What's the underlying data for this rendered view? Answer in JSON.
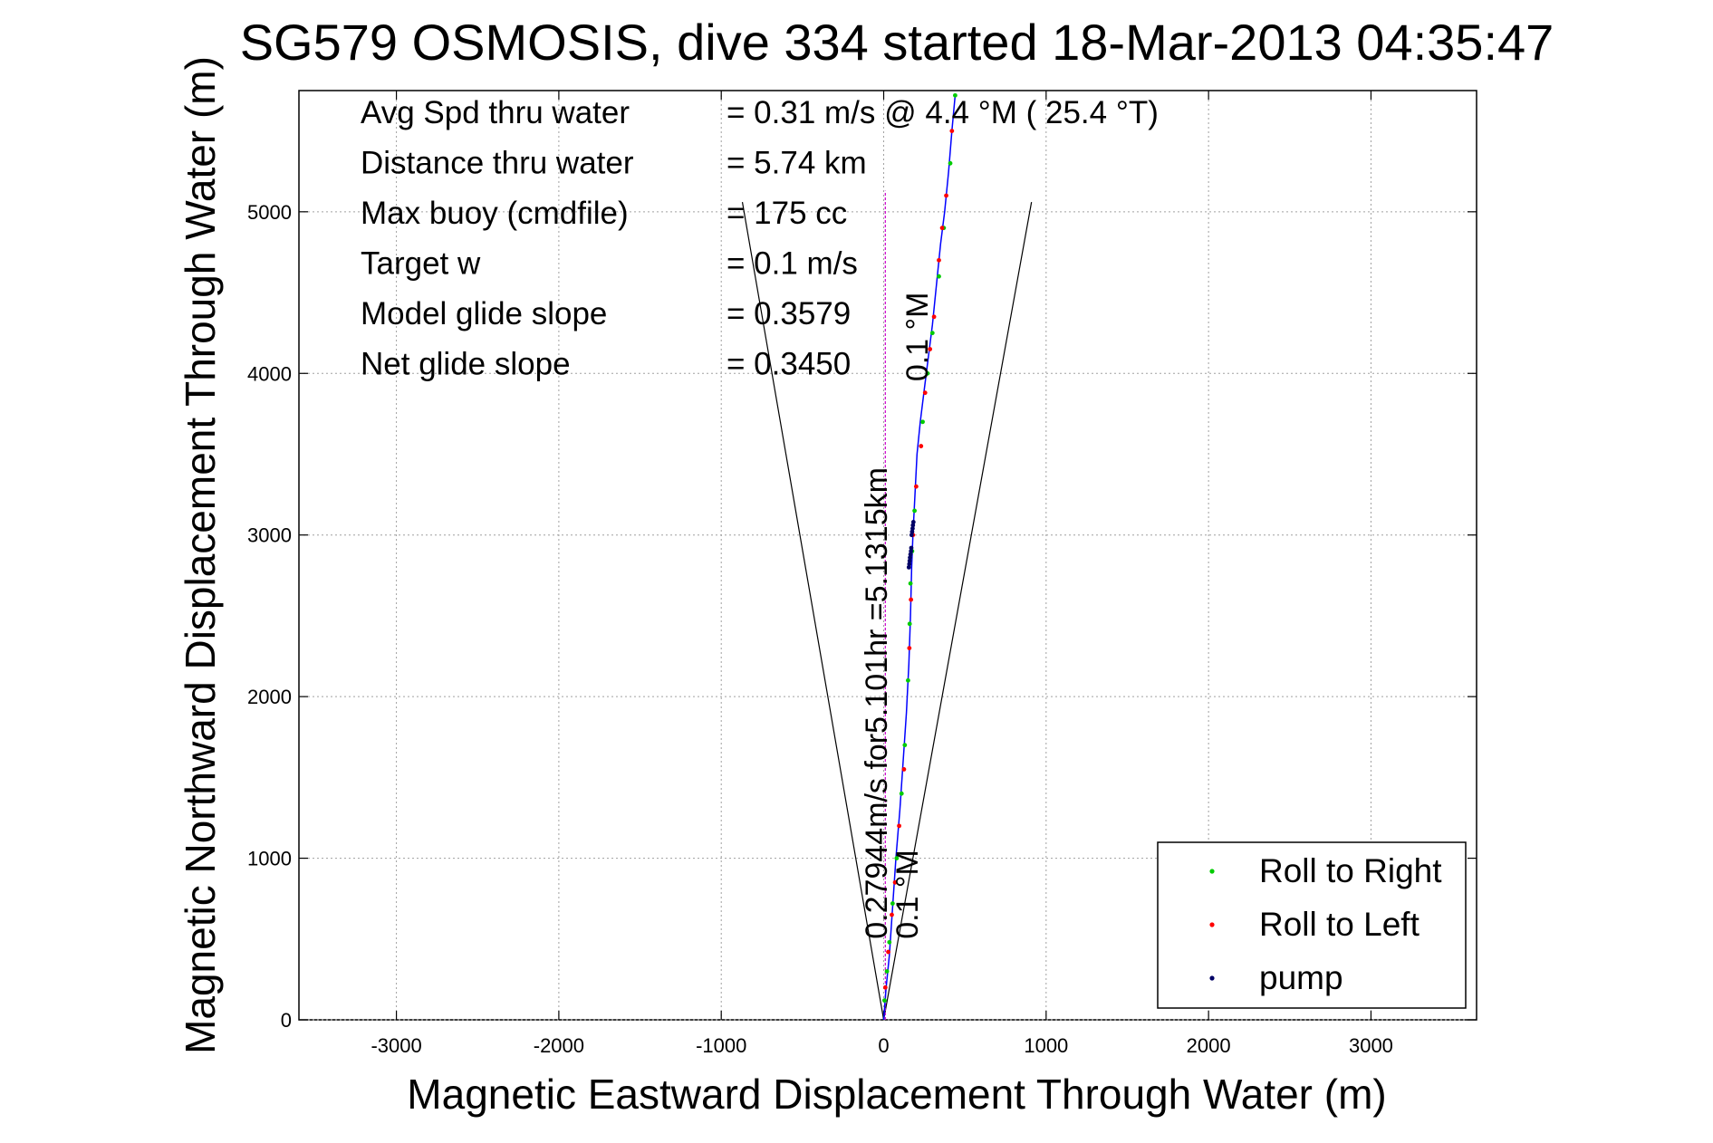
{
  "chart_data": {
    "type": "scatter",
    "title": "SG579 OSMOSIS, dive 334 started 18-Mar-2013 04:35:47",
    "xlabel": "Magnetic Eastward Displacement Through Water (m)",
    "ylabel": "Magnetic Northward Displacement Through Water (m)",
    "xlim": [
      -3600,
      3650
    ],
    "ylim": [
      0,
      5750
    ],
    "xticks": [
      -3000,
      -2000,
      -1000,
      0,
      1000,
      2000,
      3000
    ],
    "yticks": [
      0,
      1000,
      2000,
      3000,
      4000,
      5000
    ],
    "grid": true,
    "legend_position": "bottom-right",
    "stats": [
      {
        "label": "Avg Spd thru water",
        "value": "=  0.31 m/s @    4.4 °M ( 25.4 °T)"
      },
      {
        "label": "Distance thru water",
        "value": "=  5.74 km"
      },
      {
        "label": "Max buoy (cmdfile)",
        "value": "= 175 cc"
      },
      {
        "label": "Target w",
        "value": "= 0.1 m/s"
      },
      {
        "label": "Model glide slope",
        "value": "= 0.3579"
      },
      {
        "label": "Net glide slope",
        "value": "= 0.3450"
      }
    ],
    "annotations": {
      "current_label": "0.27944m/s for5.101hr =5.1315km",
      "bottom_heading_label": "0.1 °M",
      "top_heading_label": "0.1 °M"
    },
    "cone_lines": [
      {
        "x": [
          0,
          -870
        ],
        "y": [
          0,
          5060
        ]
      },
      {
        "x": [
          0,
          910
        ],
        "y": [
          0,
          5060
        ]
      }
    ],
    "reference_line": {
      "x": [
        10,
        10
      ],
      "y": [
        0,
        5130
      ]
    },
    "track": {
      "x": [
        0,
        15,
        35,
        55,
        75,
        100,
        120,
        140,
        155,
        165,
        172,
        180,
        190,
        205,
        225,
        250,
        275,
        300,
        325,
        350,
        375,
        400,
        420,
        440
      ],
      "y": [
        0,
        200,
        400,
        700,
        1000,
        1300,
        1600,
        1900,
        2200,
        2500,
        2800,
        3000,
        3200,
        3500,
        3700,
        3900,
        4100,
        4300,
        4550,
        4800,
        5000,
        5250,
        5500,
        5720
      ]
    },
    "series": [
      {
        "name": "Roll to Right",
        "color": "#00cc00",
        "x": [
          5,
          20,
          35,
          55,
          80,
          110,
          130,
          150,
          160,
          165,
          175,
          190,
          240,
          270,
          300,
          340,
          370,
          410,
          440
        ],
        "y": [
          120,
          300,
          480,
          720,
          1000,
          1400,
          1700,
          2100,
          2450,
          2700,
          2900,
          3150,
          3700,
          4000,
          4250,
          4600,
          4900,
          5300,
          5720
        ]
      },
      {
        "name": "Roll to Left",
        "color": "#ff0000",
        "x": [
          10,
          28,
          50,
          70,
          95,
          125,
          158,
          168,
          180,
          200,
          230,
          255,
          285,
          310,
          340,
          360,
          385,
          420
        ],
        "y": [
          200,
          420,
          650,
          850,
          1200,
          1550,
          2300,
          2600,
          3000,
          3300,
          3550,
          3880,
          4150,
          4350,
          4700,
          4900,
          5100,
          5500
        ]
      },
      {
        "name": "pump",
        "color": "#000066",
        "x": [
          155,
          158,
          160,
          162,
          165,
          168,
          170,
          172,
          175,
          178,
          180,
          183
        ],
        "y": [
          2800,
          2820,
          2840,
          2860,
          2880,
          2900,
          2920,
          3000,
          3020,
          3040,
          3060,
          3080
        ]
      }
    ]
  }
}
